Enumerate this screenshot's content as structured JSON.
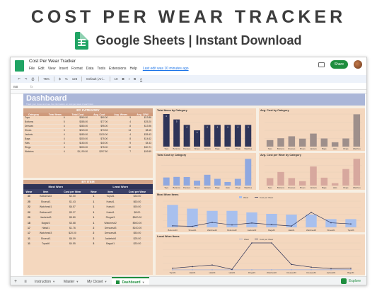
{
  "hero": {
    "title": "COST PER WEAR TRACKER",
    "subtitle": "Google Sheets | Instant Download"
  },
  "window": {
    "doc_title": "Cost Per Wear Tracker",
    "menu": [
      "File",
      "Edit",
      "View",
      "Insert",
      "Format",
      "Data",
      "Tools",
      "Extensions",
      "Help"
    ],
    "last_edit": "Last edit was 10 minutes ago",
    "share_label": "Share",
    "toolbar": {
      "zoom": "75%",
      "format": "123",
      "font": "Default (Ari...",
      "size": "10"
    },
    "cell_ref": "I50",
    "fx": "fx"
  },
  "dashboard": {
    "title": "Dashboard",
    "subtitle": "Track your closet and see the information on cost per wear of each item",
    "by_category": {
      "heading": "BY CATEGORY",
      "headers": [
        "Category",
        "Total Items",
        "Total Cost",
        "Avg. Cost",
        "Avg. Wears",
        "Avg. CPW"
      ],
      "rows": [
        [
          "Tops",
          "6",
          "$360.00",
          "$60.00",
          "9",
          "$13.88"
        ],
        [
          "Bottoms",
          "5",
          "$385.00",
          "$77.00",
          "4",
          "$25.20"
        ],
        [
          "Dresses",
          "4",
          "$380.00",
          "$95.00",
          "8",
          "$13.96"
        ],
        [
          "Shoes",
          "3",
          "$220.00",
          "$73.33",
          "14",
          "$8.15"
        ],
        [
          "Jackets",
          "4",
          "$480.00",
          "$120.00",
          "4",
          "$35.43"
        ],
        [
          "Bags",
          "4",
          "$300.00",
          "$75.00",
          "8",
          "$14.62"
        ],
        [
          "Hats",
          "4",
          "$160.00",
          "$40.00",
          "9",
          "$4.43"
        ],
        [
          "Rings",
          "4",
          "$300.00",
          "$75.00",
          "10",
          "$30.71"
        ],
        [
          "Watches",
          "4",
          "$1,190.00",
          "$297.50",
          "7",
          "$49.59"
        ]
      ]
    },
    "by_item": {
      "heading": "BY ITEM",
      "most_worn": "Most Worn",
      "least_worn": "Least Worn",
      "headers": [
        "Wear",
        "Item",
        "Cost per Wear",
        "Wear",
        "Item",
        "Cost per Wear"
      ],
      "rows": [
        [
          "30",
          "Bottoms#3",
          "$2.00",
          "1",
          "Tops#1",
          "$30.00"
        ],
        [
          "25",
          "Shoes#1",
          "$1.43",
          "1",
          "Hats#1",
          "$60.00"
        ],
        [
          "22",
          "Watches#1",
          "$6.57",
          "1",
          "Hats#4",
          "$90.00"
        ],
        [
          "22",
          "Bottoms#2",
          "$3.27",
          "1",
          "Hats#1",
          "$8.00"
        ],
        [
          "20",
          "Jackets#3",
          "$5.80",
          "1",
          "Rings#1",
          "$500.00"
        ],
        [
          "18",
          "Bags#3",
          "$3.68",
          "1",
          "Watches#2",
          "$500.00"
        ],
        [
          "17",
          "Hats#1",
          "$1.76",
          "2",
          "Dresses#3",
          "$100.00"
        ],
        [
          "17",
          "Watches#3",
          "$20.00",
          "2",
          "Dresses#4",
          "$50.00"
        ],
        [
          "11",
          "Shoes#1",
          "$6.09",
          "2",
          "Jackets#4",
          "$25.00"
        ],
        [
          "11",
          "Tops#6",
          "$4.55",
          "3",
          "Bags#1",
          "$30.00"
        ]
      ]
    },
    "charts": {
      "total_items": "Total Items by Category",
      "avg_cost": "Avg. Cost by Category",
      "total_cost": "Total Cost by Category",
      "avg_cpw": "Avg. Cost per Wear by Category",
      "most_worn": "Most Worn Items",
      "least_worn": "Least Worn Items",
      "legend_wear": "Wear",
      "legend_cpw": "Cost per Wear"
    }
  },
  "tabs": [
    "Instruction",
    "Master",
    "My Closet",
    "Dashboard"
  ],
  "explore_label": "Explore",
  "chart_data": [
    {
      "type": "bar",
      "title": "Total Items by Category",
      "categories": [
        "Tops",
        "Bottoms",
        "Dresses",
        "Shoes",
        "Jackets",
        "Bags",
        "Hats",
        "Rings",
        "Watches"
      ],
      "values": [
        6,
        5,
        4,
        3,
        4,
        4,
        4,
        4,
        4
      ],
      "ylim": [
        0,
        6
      ],
      "color": "#2e3458",
      "data_labels": true
    },
    {
      "type": "bar",
      "title": "Avg. Cost by Category",
      "categories": [
        "Tops",
        "Bottoms",
        "Dresses",
        "Shoes",
        "Jackets",
        "Bags",
        "Hats",
        "Rings",
        "Watches"
      ],
      "values": [
        60,
        77,
        95,
        73.33,
        120,
        75,
        40,
        75,
        297.5
      ],
      "ylim": [
        0,
        300
      ],
      "color": "#9e8f8b",
      "data_labels": false
    },
    {
      "type": "bar",
      "title": "Total Cost by Category",
      "categories": [
        "Tops",
        "Bottoms",
        "Dresses",
        "Shoes",
        "Jackets",
        "Bags",
        "Hats",
        "Rings",
        "Watches"
      ],
      "values": [
        360,
        385,
        380,
        220,
        480,
        300,
        160,
        300,
        1190
      ],
      "ylim": [
        0,
        1200
      ],
      "color": "#8fa8e0",
      "data_labels": false
    },
    {
      "type": "bar",
      "title": "Avg. Cost per Wear by Category",
      "categories": [
        "Tops",
        "Bottoms",
        "Dresses",
        "Shoes",
        "Jackets",
        "Bags",
        "Hats",
        "Rings",
        "Watches"
      ],
      "values": [
        13.88,
        25.2,
        13.96,
        8.15,
        35.43,
        14.62,
        4.43,
        30.71,
        49.59
      ],
      "ylim": [
        0,
        50
      ],
      "color": "#d7a89e",
      "data_labels": false
    },
    {
      "type": "bar",
      "title": "Most Worn Items",
      "categories": [
        "Bottoms#3",
        "Shoes#1",
        "Watches#1",
        "Bottoms#2",
        "Jackets#3",
        "Bags#3",
        "Hats#1",
        "Watches#3",
        "Shoes#1",
        "Tops#6"
      ],
      "series": [
        {
          "name": "Wear",
          "values": [
            30,
            25,
            22,
            22,
            20,
            18,
            17,
            17,
            11,
            11
          ]
        },
        {
          "name": "Cost per Wear",
          "values": [
            2,
            1.43,
            6.57,
            3.27,
            5.8,
            3.68,
            1.76,
            20,
            6.09,
            4.55
          ]
        }
      ],
      "ylim": [
        0,
        35
      ]
    },
    {
      "type": "line",
      "title": "Least Worn Items",
      "categories": [
        "Tops#1",
        "Hats#1",
        "Hats#4",
        "Hats#1",
        "Rings#1",
        "Watches#2",
        "Dresses#3",
        "Dresses#4",
        "Jackets#4",
        "Bags#1"
      ],
      "series": [
        {
          "name": "Wear",
          "values": [
            1,
            1,
            1,
            1,
            1,
            1,
            2,
            2,
            2,
            3
          ]
        },
        {
          "name": "Cost per Wear",
          "values": [
            30,
            60,
            90,
            8,
            500,
            500,
            100,
            50,
            25,
            30
          ]
        }
      ],
      "ylim": [
        0,
        500
      ]
    }
  ]
}
